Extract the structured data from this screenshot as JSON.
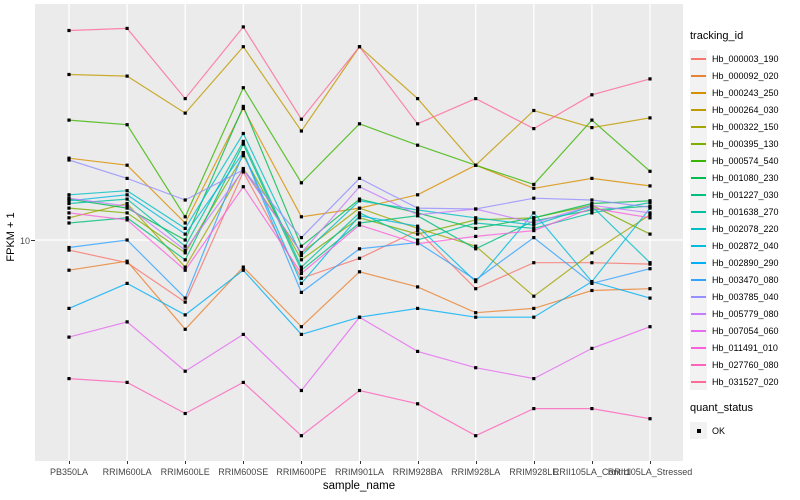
{
  "figure": {
    "y_axis_title": "FPKM + 1",
    "y_tick_label": "10",
    "x_axis_title": "sample_name",
    "legend_title": "tracking_id",
    "quant_legend_title": "quant_status",
    "quant_legend_entry": "OK"
  },
  "colors": {
    "panel_background": "#EBEBEB",
    "gridline": "#FFFFFF",
    "point": "#000000",
    "tick_text": "#4D4D4D"
  },
  "chart_data": {
    "type": "line",
    "title": "",
    "xlabel": "sample_name",
    "ylabel": "FPKM + 1",
    "y_scale": "log10",
    "y_ticks": [
      "10"
    ],
    "ylim": [
      1.6,
      70
    ],
    "grid": "vertical major per sample + horizontal at y=10, white on gray panel",
    "legend_position": "right",
    "point_marker": "black square (quant_status OK)",
    "categories": [
      "PB350LA",
      "RRIM600LA",
      "RRIM600LE",
      "RRIM600SE",
      "RRIM600PE",
      "RRIM901LA",
      "RRIM928BA",
      "RRIM928LA",
      "RRIM928LE",
      "RRII105LA_Control",
      "RRII105LA_Stressed"
    ],
    "series": [
      {
        "name": "Hb_000003_190",
        "color": "#F8766D",
        "values": [
          9.2,
          8.3,
          6.0,
          17.5,
          7.3,
          8.6,
          10.8,
          6.7,
          8.3,
          8.3,
          8.2
        ]
      },
      {
        "name": "Hb_000092_020",
        "color": "#EA8331",
        "values": [
          7.8,
          8.4,
          4.8,
          8.0,
          4.9,
          7.7,
          6.8,
          5.5,
          5.7,
          6.6,
          6.7
        ]
      },
      {
        "name": "Hb_000243_250",
        "color": "#D89000",
        "values": [
          19.6,
          18.5,
          11.5,
          29.5,
          12.1,
          13.0,
          14.5,
          18.5,
          15.3,
          16.6,
          15.6
        ]
      },
      {
        "name": "Hb_000264_030",
        "color": "#C09B00",
        "values": [
          39.0,
          38.5,
          28.4,
          49.0,
          24.5,
          49.0,
          32.0,
          18.5,
          29.0,
          25.2,
          27.3
        ]
      },
      {
        "name": "Hb_000322_150",
        "color": "#A3A500",
        "values": [
          12.0,
          13.5,
          8.0,
          18.0,
          9.0,
          13.0,
          11.0,
          9.5,
          6.3,
          9.0,
          12.3
        ]
      },
      {
        "name": "Hb_000395_130",
        "color": "#7CAE00",
        "values": [
          13.0,
          12.5,
          9.0,
          20.0,
          8.5,
          12.0,
          10.5,
          11.8,
          12.0,
          13.3,
          10.5
        ]
      },
      {
        "name": "Hb_000574_540",
        "color": "#39B600",
        "values": [
          26.8,
          25.8,
          12.1,
          35.0,
          16.0,
          26.0,
          21.8,
          18.5,
          15.8,
          26.8,
          17.6
        ]
      },
      {
        "name": "Hb_001080_230",
        "color": "#00BB4E",
        "values": [
          14.0,
          13.0,
          10.0,
          30.0,
          9.5,
          14.0,
          12.5,
          11.0,
          12.0,
          13.5,
          13.8
        ]
      },
      {
        "name": "Hb_001227_030",
        "color": "#00BF7D",
        "values": [
          11.5,
          12.0,
          8.5,
          22.0,
          7.8,
          11.5,
          12.2,
          9.3,
          11.7,
          12.8,
          13.2
        ]
      },
      {
        "name": "Hb_001638_270",
        "color": "#00C1A3",
        "values": [
          13.5,
          14.0,
          9.5,
          22.5,
          8.0,
          12.5,
          10.0,
          11.5,
          11.0,
          12.5,
          13.6
        ]
      },
      {
        "name": "Hb_002078_220",
        "color": "#00BFC4",
        "values": [
          14.5,
          15.0,
          11.0,
          24.0,
          8.8,
          13.8,
          12.8,
          12.0,
          11.3,
          13.2,
          8.3
        ]
      },
      {
        "name": "Hb_002872_040",
        "color": "#00BAE0",
        "values": [
          13.8,
          14.5,
          10.5,
          20.5,
          7.0,
          12.2,
          11.2,
          7.1,
          12.5,
          7.1,
          13.0
        ]
      },
      {
        "name": "Hb_002890_290",
        "color": "#00B0F6",
        "values": [
          5.7,
          7.0,
          5.4,
          7.8,
          4.6,
          5.3,
          5.7,
          5.3,
          5.3,
          7.1,
          6.2
        ]
      },
      {
        "name": "Hb_003470_080",
        "color": "#35A2FF",
        "values": [
          9.4,
          10.0,
          6.2,
          20.5,
          6.5,
          9.3,
          9.8,
          7.2,
          10.2,
          7.0,
          7.9
        ]
      },
      {
        "name": "Hb_003785_040",
        "color": "#9590FF",
        "values": [
          19.3,
          16.6,
          13.9,
          17.8,
          10.2,
          16.6,
          13.0,
          12.9,
          14.1,
          13.9,
          13.1
        ]
      },
      {
        "name": "Hb_005779_080",
        "color": "#C77CFF",
        "values": [
          14.1,
          13.2,
          9.2,
          17.8,
          9.0,
          15.5,
          12.3,
          12.9,
          11.5,
          13.3,
          12.5
        ]
      },
      {
        "name": "Hb_007054_060",
        "color": "#E76BF3",
        "values": [
          4.5,
          5.1,
          3.4,
          4.6,
          2.9,
          5.3,
          4.0,
          3.5,
          3.2,
          4.1,
          4.9
        ]
      },
      {
        "name": "Hb_011491_010",
        "color": "#FA62DB",
        "values": [
          12.5,
          11.8,
          7.8,
          15.5,
          7.6,
          11.3,
          9.7,
          10.3,
          10.8,
          13.0,
          12.0
        ]
      },
      {
        "name": "Hb_027760_080",
        "color": "#FF62BC",
        "values": [
          3.2,
          3.1,
          2.4,
          3.1,
          2.0,
          2.9,
          2.6,
          2.0,
          2.5,
          2.5,
          2.3
        ]
      },
      {
        "name": "Hb_031527_020",
        "color": "#FF6A98",
        "values": [
          56.0,
          57.0,
          32.0,
          57.7,
          27.0,
          49.0,
          26.0,
          32.0,
          25.0,
          33.0,
          37.6
        ]
      }
    ],
    "quant_status": {
      "title": "quant_status",
      "entries": [
        "OK"
      ]
    }
  }
}
